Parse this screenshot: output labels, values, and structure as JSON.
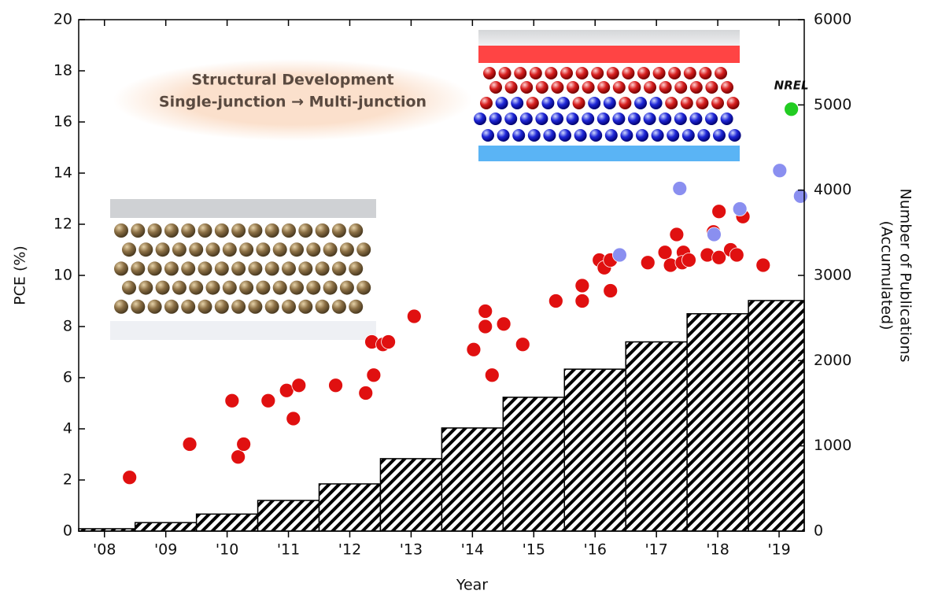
{
  "chart_data": {
    "type": "combo",
    "xlabel": "Year",
    "ylabel": "PCE (%)",
    "y2label": [
      "Number of Publications",
      "(Accumulated)"
    ],
    "annotations": [
      "Structural Development",
      "Single-junction → Multi-junction"
    ],
    "xlim": [
      2007.58,
      2019.41
    ],
    "xticks": [
      {
        "value": 2008,
        "label": "'08"
      },
      {
        "value": 2009,
        "label": "'09"
      },
      {
        "value": 2010,
        "label": "'10"
      },
      {
        "value": 2011,
        "label": "'11"
      },
      {
        "value": 2012,
        "label": "'12"
      },
      {
        "value": 2013,
        "label": "'13"
      },
      {
        "value": 2014,
        "label": "'14"
      },
      {
        "value": 2015,
        "label": "'15"
      },
      {
        "value": 2016,
        "label": "'16"
      },
      {
        "value": 2017,
        "label": "'17"
      },
      {
        "value": 2018,
        "label": "'18"
      },
      {
        "value": 2019,
        "label": "'19"
      }
    ],
    "ylim": [
      0,
      20
    ],
    "yticks": [
      0,
      2,
      4,
      6,
      8,
      10,
      12,
      14,
      16,
      18,
      20
    ],
    "y2lim": [
      0,
      6000
    ],
    "y2ticks": [
      0,
      1000,
      2000,
      3000,
      4000,
      5000,
      6000
    ],
    "series": [
      {
        "type": "bar",
        "axis": "y2",
        "color": "#000000",
        "x": [
          2008,
          2009,
          2010,
          2011,
          2012,
          2013,
          2014,
          2015,
          2016,
          2017,
          2018,
          2019
        ],
        "values": [
          28,
          100,
          200,
          360,
          554,
          850,
          1210,
          1570,
          1900,
          2220,
          2550,
          2705
        ]
      },
      {
        "type": "scatter",
        "color": "#e01010",
        "x": [
          2008.41,
          2009.39,
          2010.08,
          2010.18,
          2010.27,
          2010.67,
          2010.97,
          2011.08,
          2011.17,
          2011.77,
          2012.26,
          2012.39,
          2012.36,
          2012.54,
          2012.63,
          2013.05,
          2014.02,
          2014.21,
          2014.21,
          2014.32,
          2014.51,
          2014.82,
          2015.36,
          2015.79,
          2015.79,
          2016.07,
          2016.15,
          2016.25,
          2016.25,
          2016.86,
          2017.14,
          2017.23,
          2017.33,
          2017.44,
          2017.42,
          2017.53,
          2017.83,
          2017.93,
          2018.02,
          2018.02,
          2018.21,
          2018.31,
          2018.41,
          2018.74
        ],
        "values": [
          2.1,
          3.4,
          5.1,
          2.9,
          3.4,
          5.1,
          5.5,
          4.4,
          5.7,
          5.7,
          5.4,
          6.1,
          7.4,
          7.3,
          7.4,
          8.4,
          7.1,
          8.6,
          8.0,
          6.1,
          8.1,
          7.3,
          9.0,
          9.0,
          9.6,
          10.6,
          10.3,
          10.6,
          9.4,
          10.5,
          10.9,
          10.4,
          11.6,
          10.9,
          10.5,
          10.6,
          10.8,
          11.7,
          12.5,
          10.7,
          11.0,
          10.8,
          12.3,
          10.4
        ]
      },
      {
        "type": "scatter",
        "color": "#8a8ff0",
        "x": [
          2016.4,
          2017.38,
          2017.94,
          2018.36,
          2019.01,
          2019.35
        ],
        "values": [
          10.8,
          13.4,
          11.6,
          12.6,
          14.1,
          13.1
        ]
      },
      {
        "type": "scatter",
        "name": "NREL",
        "color": "#22cc22",
        "x": [
          2019.2
        ],
        "values": [
          16.5
        ]
      }
    ]
  }
}
